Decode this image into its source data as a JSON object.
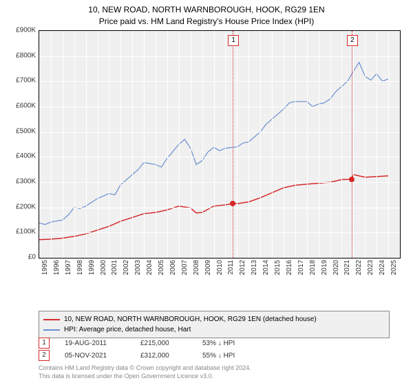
{
  "title_line1": "10, NEW ROAD, NORTH WARNBOROUGH, HOOK, RG29 1EN",
  "title_line2": "Price paid vs. HM Land Registry's House Price Index (HPI)",
  "chart": {
    "type": "line",
    "background_color": "#f0f0f0",
    "grid_color": "#ffffff",
    "border_color": "#000000",
    "ylim": [
      0,
      900000
    ],
    "ytick_step": 100000,
    "yticks": [
      "£0",
      "£100K",
      "£200K",
      "£300K",
      "£400K",
      "£500K",
      "£600K",
      "£700K",
      "£800K",
      "£900K"
    ],
    "xlim": [
      1995,
      2026
    ],
    "xtick_step": 1,
    "xticks": [
      "1995",
      "1996",
      "1997",
      "1998",
      "1999",
      "2000",
      "2001",
      "2002",
      "2003",
      "2004",
      "2005",
      "2006",
      "2007",
      "2008",
      "2009",
      "2010",
      "2011",
      "2012",
      "2013",
      "2014",
      "2015",
      "2016",
      "2017",
      "2018",
      "2019",
      "2020",
      "2021",
      "2022",
      "2023",
      "2024",
      "2025"
    ],
    "label_fontsize": 10,
    "series": [
      {
        "name": "price_paid",
        "color": "#d62728",
        "line_width": 1.5,
        "data": [
          [
            1995,
            72000
          ],
          [
            1996,
            74000
          ],
          [
            1997,
            78000
          ],
          [
            1998,
            85000
          ],
          [
            1999,
            95000
          ],
          [
            2000,
            110000
          ],
          [
            2001,
            125000
          ],
          [
            2002,
            145000
          ],
          [
            2003,
            160000
          ],
          [
            2004,
            175000
          ],
          [
            2005,
            180000
          ],
          [
            2006,
            190000
          ],
          [
            2007,
            205000
          ],
          [
            2008,
            198000
          ],
          [
            2008.5,
            178000
          ],
          [
            2009,
            180000
          ],
          [
            2010,
            205000
          ],
          [
            2011,
            210000
          ],
          [
            2011.63,
            215000
          ],
          [
            2012,
            215000
          ],
          [
            2013,
            222000
          ],
          [
            2014,
            238000
          ],
          [
            2015,
            258000
          ],
          [
            2016,
            278000
          ],
          [
            2017,
            288000
          ],
          [
            2018,
            292000
          ],
          [
            2019,
            296000
          ],
          [
            2020,
            300000
          ],
          [
            2021,
            310000
          ],
          [
            2021.85,
            312000
          ],
          [
            2022,
            330000
          ],
          [
            2023,
            320000
          ],
          [
            2024,
            322000
          ],
          [
            2025,
            325000
          ]
        ]
      },
      {
        "name": "hpi",
        "color": "#6a8fd0",
        "line_width": 1.2,
        "data": [
          [
            1995,
            138000
          ],
          [
            1995.5,
            132000
          ],
          [
            1996,
            142000
          ],
          [
            1997,
            150000
          ],
          [
            1997.5,
            170000
          ],
          [
            1998,
            200000
          ],
          [
            1998.5,
            195000
          ],
          [
            1999,
            205000
          ],
          [
            2000,
            235000
          ],
          [
            2001,
            255000
          ],
          [
            2001.5,
            250000
          ],
          [
            2002,
            290000
          ],
          [
            2003,
            330000
          ],
          [
            2003.5,
            350000
          ],
          [
            2004,
            378000
          ],
          [
            2005,
            370000
          ],
          [
            2005.5,
            360000
          ],
          [
            2006,
            395000
          ],
          [
            2007,
            450000
          ],
          [
            2007.5,
            470000
          ],
          [
            2008,
            435000
          ],
          [
            2008.5,
            370000
          ],
          [
            2009,
            385000
          ],
          [
            2009.5,
            420000
          ],
          [
            2010,
            438000
          ],
          [
            2010.5,
            425000
          ],
          [
            2011,
            435000
          ],
          [
            2012,
            440000
          ],
          [
            2012.5,
            455000
          ],
          [
            2013,
            460000
          ],
          [
            2014,
            500000
          ],
          [
            2014.5,
            530000
          ],
          [
            2015,
            550000
          ],
          [
            2016,
            590000
          ],
          [
            2016.5,
            615000
          ],
          [
            2017,
            620000
          ],
          [
            2018,
            620000
          ],
          [
            2018.5,
            600000
          ],
          [
            2019,
            610000
          ],
          [
            2019.5,
            615000
          ],
          [
            2020,
            630000
          ],
          [
            2020.5,
            660000
          ],
          [
            2021,
            680000
          ],
          [
            2021.5,
            700000
          ],
          [
            2022,
            740000
          ],
          [
            2022.5,
            775000
          ],
          [
            2023,
            720000
          ],
          [
            2023.5,
            705000
          ],
          [
            2024,
            730000
          ],
          [
            2024.5,
            700000
          ],
          [
            2025,
            710000
          ]
        ]
      }
    ],
    "markers": [
      {
        "x": 2011.63,
        "y": 215000,
        "color": "#d62728",
        "label": "1"
      },
      {
        "x": 2021.85,
        "y": 312000,
        "color": "#d62728",
        "label": "2"
      }
    ],
    "ref_lines": [
      {
        "x": 2011.63,
        "label": "1",
        "color": "#d62728"
      },
      {
        "x": 2021.85,
        "label": "2",
        "color": "#d62728"
      }
    ]
  },
  "legend": {
    "items": [
      {
        "color": "#d62728",
        "label": "10, NEW ROAD, NORTH WARNBOROUGH, HOOK, RG29 1EN (detached house)"
      },
      {
        "color": "#6a8fd0",
        "label": "HPI: Average price, detached house, Hart"
      }
    ]
  },
  "sales": [
    {
      "n": "1",
      "date": "19-AUG-2011",
      "price": "£215,000",
      "pct": "53% ↓ HPI"
    },
    {
      "n": "2",
      "date": "05-NOV-2021",
      "price": "£312,000",
      "pct": "55% ↓ HPI"
    }
  ],
  "footer_line1": "Contains HM Land Registry data © Crown copyright and database right 2024.",
  "footer_line2": "This data is licensed under the Open Government Licence v3.0."
}
